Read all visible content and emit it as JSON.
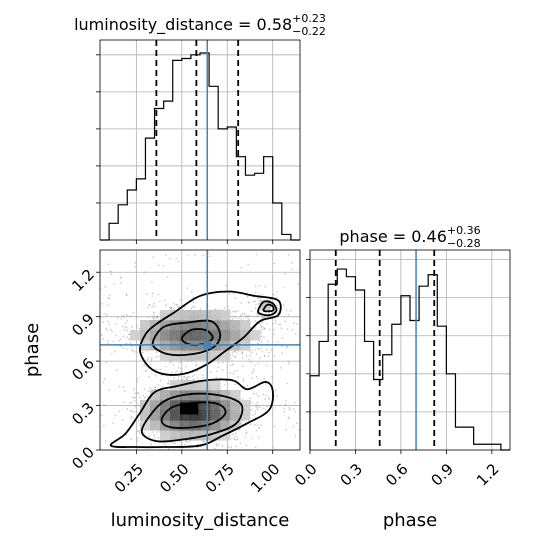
{
  "chart_data": [
    {
      "type": "histogram",
      "panel": "luminosity_distance-marginal",
      "title_param": "luminosity_distance",
      "title_value": "0.58",
      "title_plus": "+0.23",
      "title_minus": "−0.22",
      "xlim": [
        0.05,
        1.15
      ],
      "ylim": [
        0,
        1.0
      ],
      "bins": [
        {
          "x0": 0.05,
          "x1": 0.1,
          "h": 0.0
        },
        {
          "x0": 0.1,
          "x1": 0.15,
          "h": 0.09
        },
        {
          "x0": 0.15,
          "x1": 0.2,
          "h": 0.19
        },
        {
          "x0": 0.2,
          "x1": 0.25,
          "h": 0.27
        },
        {
          "x0": 0.25,
          "x1": 0.3,
          "h": 0.33
        },
        {
          "x0": 0.3,
          "x1": 0.35,
          "h": 0.55
        },
        {
          "x0": 0.35,
          "x1": 0.4,
          "h": 0.71
        },
        {
          "x0": 0.4,
          "x1": 0.45,
          "h": 0.75
        },
        {
          "x0": 0.45,
          "x1": 0.5,
          "h": 0.97
        },
        {
          "x0": 0.5,
          "x1": 0.55,
          "h": 0.98
        },
        {
          "x0": 0.55,
          "x1": 0.6,
          "h": 1.0
        },
        {
          "x0": 0.6,
          "x1": 0.65,
          "h": 1.01
        },
        {
          "x0": 0.65,
          "x1": 0.7,
          "h": 0.83
        },
        {
          "x0": 0.7,
          "x1": 0.75,
          "h": 0.6
        },
        {
          "x0": 0.75,
          "x1": 0.8,
          "h": 0.61
        },
        {
          "x0": 0.8,
          "x1": 0.85,
          "h": 0.45
        },
        {
          "x0": 0.85,
          "x1": 0.9,
          "h": 0.35
        },
        {
          "x0": 0.9,
          "x1": 0.95,
          "h": 0.36
        },
        {
          "x0": 0.95,
          "x1": 1.0,
          "h": 0.45
        },
        {
          "x0": 1.0,
          "x1": 1.05,
          "h": 0.2
        },
        {
          "x0": 1.05,
          "x1": 1.1,
          "h": 0.03
        },
        {
          "x0": 1.1,
          "x1": 1.15,
          "h": 0.0
        }
      ],
      "quantiles": [
        0.36,
        0.58,
        0.81
      ],
      "truth": 0.64
    },
    {
      "type": "histogram",
      "panel": "phase-marginal",
      "title_param": "phase",
      "title_value": "0.46",
      "title_plus": "+0.36",
      "title_minus": "−0.28",
      "xlim": [
        0.0,
        1.32
      ],
      "ylim": [
        0,
        1.0
      ],
      "xticks": [
        "0.0",
        "0.3",
        "0.6",
        "0.9",
        "1.2"
      ],
      "xtick_values": [
        0.0,
        0.3,
        0.6,
        0.9,
        1.2
      ],
      "xlabel": "phase",
      "bins": [
        {
          "x0": 0.0,
          "x1": 0.06,
          "h": 0.39
        },
        {
          "x0": 0.06,
          "x1": 0.12,
          "h": 0.57
        },
        {
          "x0": 0.12,
          "x1": 0.18,
          "h": 0.87
        },
        {
          "x0": 0.18,
          "x1": 0.24,
          "h": 0.95
        },
        {
          "x0": 0.24,
          "x1": 0.3,
          "h": 0.91
        },
        {
          "x0": 0.3,
          "x1": 0.36,
          "h": 0.84
        },
        {
          "x0": 0.36,
          "x1": 0.42,
          "h": 0.57
        },
        {
          "x0": 0.42,
          "x1": 0.48,
          "h": 0.37
        },
        {
          "x0": 0.48,
          "x1": 0.54,
          "h": 0.5
        },
        {
          "x0": 0.54,
          "x1": 0.6,
          "h": 0.66
        },
        {
          "x0": 0.6,
          "x1": 0.66,
          "h": 0.81
        },
        {
          "x0": 0.66,
          "x1": 0.72,
          "h": 0.68
        },
        {
          "x0": 0.72,
          "x1": 0.78,
          "h": 0.86
        },
        {
          "x0": 0.78,
          "x1": 0.84,
          "h": 0.92
        },
        {
          "x0": 0.84,
          "x1": 0.9,
          "h": 0.65
        },
        {
          "x0": 0.9,
          "x1": 0.96,
          "h": 0.4
        },
        {
          "x0": 0.96,
          "x1": 1.02,
          "h": 0.12
        },
        {
          "x0": 1.02,
          "x1": 1.08,
          "h": 0.12
        },
        {
          "x0": 1.08,
          "x1": 1.14,
          "h": 0.03
        },
        {
          "x0": 1.14,
          "x1": 1.2,
          "h": 0.03
        },
        {
          "x0": 1.2,
          "x1": 1.26,
          "h": 0.03
        },
        {
          "x0": 1.26,
          "x1": 1.32,
          "h": 0.0
        }
      ],
      "quantiles": [
        0.17,
        0.46,
        0.82
      ],
      "truth": 0.7
    },
    {
      "type": "heatmap",
      "panel": "luminosity_distance-vs-phase",
      "xlabel": "luminosity_distance",
      "ylabel": "phase",
      "xlim": [
        0.05,
        1.15
      ],
      "ylim": [
        0.0,
        1.35
      ],
      "xticks": [
        "0.25",
        "0.50",
        "0.75",
        "1.00"
      ],
      "xtick_values": [
        0.25,
        0.5,
        0.75,
        1.0
      ],
      "yticks": [
        "0.0",
        "0.3",
        "0.6",
        "0.9",
        "1.2"
      ],
      "ytick_values": [
        0.0,
        0.3,
        0.6,
        0.9,
        1.2
      ],
      "truth": {
        "x": 0.64,
        "y": 0.71
      },
      "modes": [
        {
          "x": 0.56,
          "y": 0.26,
          "sx": 0.17,
          "sy": 0.11,
          "w": 1.0
        },
        {
          "x": 0.57,
          "y": 0.78,
          "sx": 0.21,
          "sy": 0.1,
          "w": 0.75
        },
        {
          "x": 0.96,
          "y": 0.97,
          "sx": 0.06,
          "sy": 0.05,
          "w": 0.25
        }
      ],
      "contours": [
        {
          "level": "outer-lower",
          "points": [
            [
              0.11,
              0.03
            ],
            [
              0.19,
              0.11
            ],
            [
              0.27,
              0.25
            ],
            [
              0.35,
              0.39
            ],
            [
              0.47,
              0.43
            ],
            [
              0.63,
              0.47
            ],
            [
              0.78,
              0.47
            ],
            [
              0.86,
              0.41
            ],
            [
              0.96,
              0.46
            ],
            [
              1.0,
              0.4
            ],
            [
              0.98,
              0.27
            ],
            [
              0.86,
              0.18
            ],
            [
              0.73,
              0.1
            ],
            [
              0.6,
              0.03
            ],
            [
              0.4,
              0.02
            ],
            [
              0.25,
              0.02
            ]
          ]
        },
        {
          "level": "mid-lower",
          "points": [
            [
              0.28,
              0.12
            ],
            [
              0.33,
              0.24
            ],
            [
              0.42,
              0.34
            ],
            [
              0.58,
              0.38
            ],
            [
              0.74,
              0.36
            ],
            [
              0.83,
              0.3
            ],
            [
              0.8,
              0.18
            ],
            [
              0.67,
              0.11
            ],
            [
              0.5,
              0.07
            ],
            [
              0.36,
              0.06
            ]
          ]
        },
        {
          "level": "inner-lower",
          "points": [
            [
              0.39,
              0.21
            ],
            [
              0.45,
              0.29
            ],
            [
              0.58,
              0.32
            ],
            [
              0.7,
              0.31
            ],
            [
              0.74,
              0.25
            ],
            [
              0.67,
              0.18
            ],
            [
              0.53,
              0.15
            ],
            [
              0.42,
              0.16
            ]
          ]
        },
        {
          "level": "outer-upper",
          "points": [
            [
              0.27,
              0.67
            ],
            [
              0.3,
              0.78
            ],
            [
              0.36,
              0.85
            ],
            [
              0.46,
              0.93
            ],
            [
              0.6,
              1.04
            ],
            [
              0.76,
              1.07
            ],
            [
              0.9,
              1.04
            ],
            [
              1.03,
              1.01
            ],
            [
              1.03,
              0.91
            ],
            [
              0.93,
              0.87
            ],
            [
              0.84,
              0.76
            ],
            [
              0.73,
              0.66
            ],
            [
              0.64,
              0.58
            ],
            [
              0.53,
              0.52
            ],
            [
              0.41,
              0.51
            ],
            [
              0.32,
              0.56
            ]
          ]
        },
        {
          "level": "mid-upper",
          "points": [
            [
              0.34,
              0.72
            ],
            [
              0.4,
              0.83
            ],
            [
              0.53,
              0.86
            ],
            [
              0.66,
              0.87
            ],
            [
              0.71,
              0.79
            ],
            [
              0.69,
              0.71
            ],
            [
              0.61,
              0.66
            ],
            [
              0.48,
              0.64
            ],
            [
              0.39,
              0.66
            ]
          ]
        },
        {
          "level": "inner-upper",
          "points": [
            [
              0.5,
              0.75
            ],
            [
              0.55,
              0.81
            ],
            [
              0.63,
              0.81
            ],
            [
              0.67,
              0.76
            ],
            [
              0.63,
              0.72
            ],
            [
              0.55,
              0.71
            ]
          ]
        },
        {
          "level": "mid-upper-right",
          "points": [
            [
              0.92,
              0.93
            ],
            [
              0.95,
              1.0
            ],
            [
              1.0,
              0.99
            ],
            [
              1.02,
              0.94
            ],
            [
              0.98,
              0.91
            ]
          ]
        },
        {
          "level": "inner-upper-right",
          "points": [
            [
              0.95,
              0.94
            ],
            [
              0.97,
              0.98
            ],
            [
              1.0,
              0.97
            ],
            [
              1.0,
              0.94
            ]
          ]
        }
      ]
    }
  ]
}
